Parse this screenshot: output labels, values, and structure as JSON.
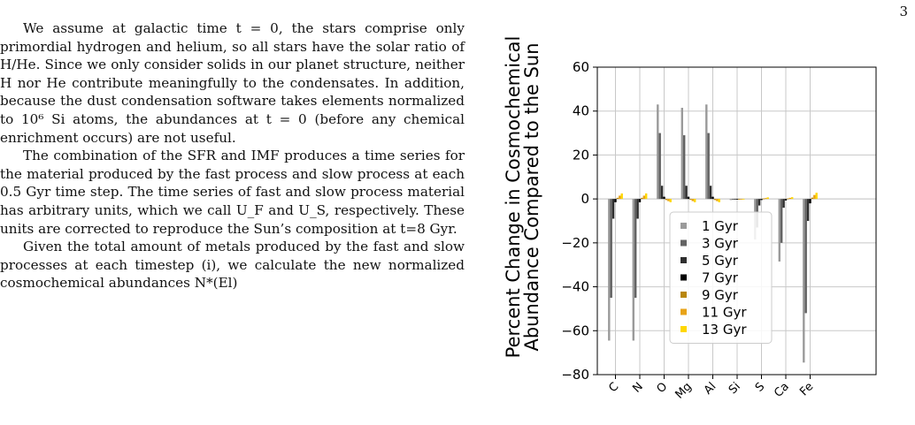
{
  "page_number": "3",
  "paragraphs": [
    "We assume at galactic time t = 0, the stars comprise only primordial hydrogen and helium, so all stars have the solar ratio of H/He. Since we only consider solids in our planet structure, neither H nor He contribute meaningfully to the condensates. In addition, because the dust condensation software takes elements normalized to 10⁶ Si atoms, the abundances at t = 0 (before any chemical enrichment occurs) are not useful.",
    "The combination of the SFR and IMF produces a time series for the material produced by the fast process and slow process at each 0.5 Gyr time step. The time series of fast and slow process material has arbitrary units, which we call U_F and U_S, respectively. These units are corrected to reproduce the Sun’s composition at t=8 Gyr.",
    "Given the total amount of metals produced by the fast and slow processes at each timestep (i), we calculate the new normalized cosmochemical abundances N*(El)"
  ],
  "chart_data": {
    "type": "bar",
    "ylabel_line1": "Percent Change in Cosmochemical",
    "ylabel_line2": "Abundance Compared to the Sun",
    "categories": [
      "C",
      "N",
      "O",
      "Mg",
      "Al",
      "Si",
      "S",
      "Ca",
      "Fe"
    ],
    "ylim": [
      -80,
      60
    ],
    "yticks": [
      -80,
      -60,
      -40,
      -20,
      0,
      20,
      40,
      60
    ],
    "grid": true,
    "legend_position": "lower-center",
    "series": [
      {
        "name": "1 Gyr",
        "color": "#9a9a9a",
        "values": [
          -64.5,
          -64.5,
          43,
          41.5,
          43,
          -0.5,
          -18.5,
          -28.5,
          -74.5
        ]
      },
      {
        "name": "3 Gyr",
        "color": "#636363",
        "values": [
          -45,
          -45,
          30,
          29,
          30,
          -0.4,
          -13,
          -20,
          -52
        ]
      },
      {
        "name": "5 Gyr",
        "color": "#2e2e2e",
        "values": [
          -9,
          -9,
          6,
          6,
          6,
          -0.2,
          -3,
          -4,
          -10
        ]
      },
      {
        "name": "7 Gyr",
        "color": "#000000",
        "values": [
          -1.5,
          -1.5,
          1,
          1,
          1,
          0,
          -0.5,
          -0.7,
          -2
        ]
      },
      {
        "name": "9 Gyr",
        "color": "#b8860b",
        "values": [
          0.5,
          0.5,
          -0.5,
          -0.4,
          -0.5,
          0,
          0.2,
          0.2,
          0.6
        ]
      },
      {
        "name": "11 Gyr",
        "color": "#e8a317",
        "values": [
          1.5,
          1.5,
          -1,
          -1,
          -1,
          0,
          0.4,
          0.5,
          1.8
        ]
      },
      {
        "name": "13 Gyr",
        "color": "#ffd700",
        "values": [
          2.5,
          2.5,
          -1.5,
          -1.5,
          -1.5,
          0,
          0.7,
          0.8,
          2.8
        ]
      }
    ]
  }
}
